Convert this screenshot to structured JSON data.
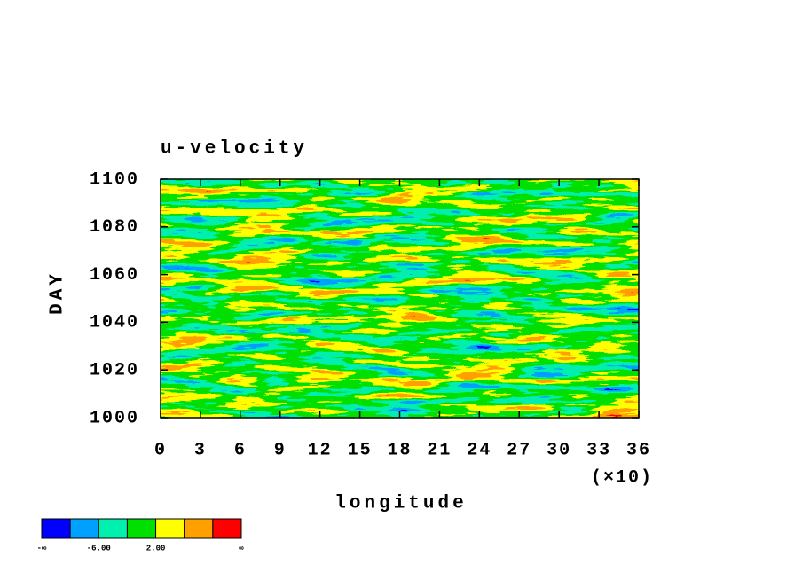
{
  "chart_data": {
    "type": "hovmoller",
    "title": "u-velocity",
    "x_label": "longitude",
    "y_label": "DAY",
    "x_scale_note": "(×10)",
    "xlim": [
      0,
      36
    ],
    "xticks": [
      0,
      3,
      6,
      9,
      12,
      15,
      18,
      21,
      24,
      27,
      30,
      33,
      36
    ],
    "ylim": [
      1000,
      1100
    ],
    "yticks": [
      1000,
      1020,
      1040,
      1060,
      1080,
      1100
    ],
    "colors": [
      "#0000ff",
      "#00a0ff",
      "#00f0b0",
      "#00e000",
      "#ffff00",
      "#ffa000",
      "#ff0000"
    ],
    "colorbar_labels": [
      "-∞",
      null,
      "-6.00",
      null,
      "2.00",
      null,
      null,
      "∞"
    ]
  }
}
